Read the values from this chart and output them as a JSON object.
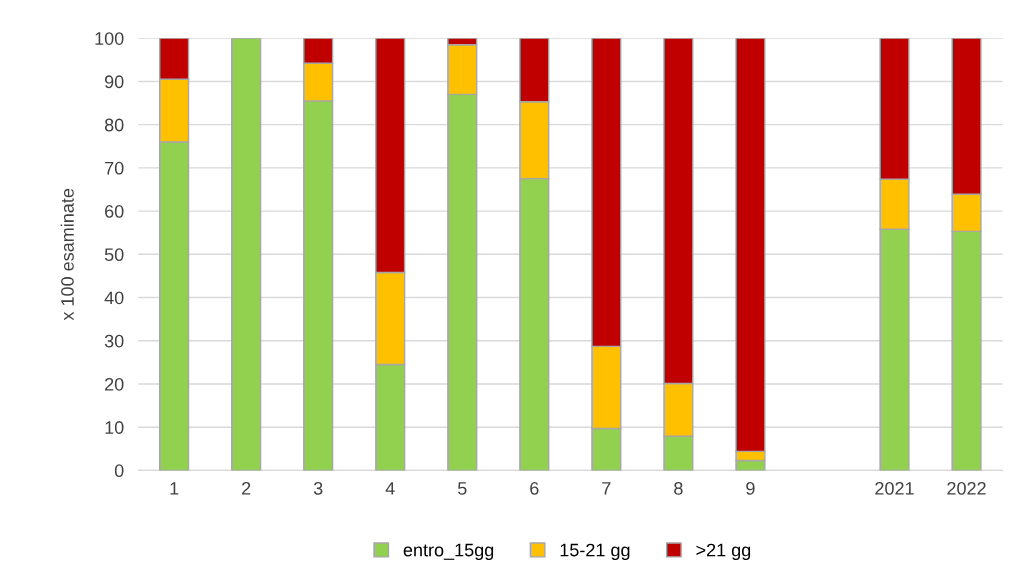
{
  "chart_data": {
    "type": "bar",
    "stacked": true,
    "ylabel": "x 100 esaminate",
    "categories": [
      "1",
      "2",
      "3",
      "4",
      "5",
      "6",
      "7",
      "8",
      "9",
      null,
      "2021",
      "2022"
    ],
    "series": [
      {
        "name": "entro_15gg",
        "color": "#92d050",
        "values": [
          76,
          100,
          85.5,
          24.5,
          87,
          67.5,
          9.7,
          7.9,
          2.3,
          null,
          55.8,
          55.3
        ]
      },
      {
        "name": "15-21 gg",
        "color": "#ffc000",
        "values": [
          14.5,
          null,
          8.7,
          21.3,
          11.5,
          17.8,
          19,
          12.2,
          2.1,
          null,
          11.6,
          8.6
        ]
      },
      {
        "name": ">21 gg",
        "color": "#c00000",
        "values": [
          9.5,
          null,
          5.8,
          54.2,
          1.5,
          14.7,
          71.3,
          79.9,
          95.6,
          null,
          32.6,
          36.1
        ]
      }
    ],
    "ylim": [
      0,
      100
    ],
    "yticks": [
      0,
      10,
      20,
      30,
      40,
      50,
      60,
      70,
      80,
      90,
      100
    ],
    "grid": "y",
    "legend": "bottom"
  }
}
